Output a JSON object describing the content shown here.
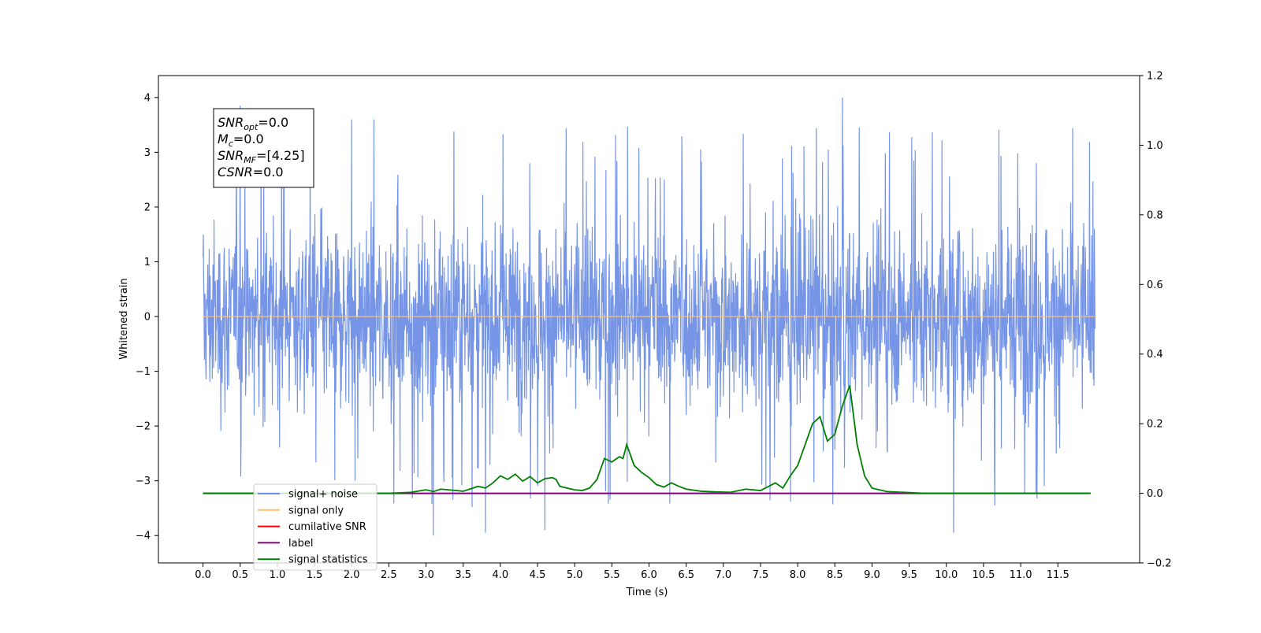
{
  "chart_data": {
    "type": "line",
    "xlabel": "Time (s)",
    "ylabel": "Whitened strain",
    "xlim": [
      -0.6,
      12.6
    ],
    "ylim": [
      -4.5,
      4.4
    ],
    "ylim_right": [
      -0.2,
      1.2
    ],
    "grid": false,
    "x_ticks": [
      "0.0",
      "0.5",
      "1.0",
      "1.5",
      "2.0",
      "2.5",
      "3.0",
      "3.5",
      "4.0",
      "4.5",
      "5.0",
      "5.5",
      "6.0",
      "6.5",
      "7.0",
      "7.5",
      "8.0",
      "8.5",
      "9.0",
      "9.5",
      "10.0",
      "10.5",
      "11.0",
      "11.5"
    ],
    "y_ticks_left": [
      "−4",
      "−3",
      "−2",
      "−1",
      "0",
      "1",
      "2",
      "3",
      "4"
    ],
    "y_ticks_right": [
      "−0.2",
      "0.0",
      "0.2",
      "0.4",
      "0.6",
      "0.8",
      "1.0",
      "1.2"
    ],
    "legend_position": "lower-left",
    "annotation": {
      "lines": [
        {
          "sym": "SNR",
          "sub": "opt",
          "value": "=0.0"
        },
        {
          "sym": "M",
          "sub": "c",
          "value": "=0.0"
        },
        {
          "sym": "SNR",
          "sub": "MF",
          "value": "=[4.25]"
        },
        {
          "sym": "CSNR",
          "sub": "",
          "value": "=0.0"
        }
      ]
    },
    "series": [
      {
        "name": "signal+ noise",
        "axis": "left",
        "color": "#6f8fe6",
        "x_range": [
          0.0,
          12.0
        ],
        "amplitude_envelope": {
          "typical_abs": 1.3,
          "peak_max": 4.0,
          "peak_min": -4.0
        },
        "notable_peaks": [
          [
            0.5,
            3.85
          ],
          [
            2.0,
            3.6
          ],
          [
            2.3,
            3.6
          ],
          [
            3.1,
            -4.0
          ],
          [
            3.8,
            -3.95
          ],
          [
            4.6,
            -3.9
          ],
          [
            8.6,
            4.0
          ],
          [
            10.1,
            -3.95
          ],
          [
            10.65,
            -3.45
          ]
        ]
      },
      {
        "name": "signal only",
        "axis": "left",
        "color": "#ffbf6b",
        "x": [
          0.0,
          12.0
        ],
        "y": [
          0.0,
          0.0
        ]
      },
      {
        "name": "cumilative SNR",
        "axis": "right",
        "color": "#ff0000",
        "x": [],
        "y": []
      },
      {
        "name": "label",
        "axis": "right",
        "color": "#800080",
        "x": [
          0.0,
          11.94
        ],
        "y": [
          0.0,
          0.0
        ]
      },
      {
        "name": "signal statistics",
        "axis": "right",
        "color": "#008000",
        "x": [
          0.0,
          2.5,
          2.8,
          3.0,
          3.1,
          3.2,
          3.4,
          3.5,
          3.7,
          3.8,
          3.9,
          4.0,
          4.1,
          4.2,
          4.3,
          4.4,
          4.5,
          4.6,
          4.7,
          4.75,
          4.8,
          4.9,
          5.0,
          5.1,
          5.2,
          5.3,
          5.4,
          5.5,
          5.6,
          5.65,
          5.7,
          5.8,
          5.9,
          6.0,
          6.1,
          6.2,
          6.3,
          6.4,
          6.5,
          6.7,
          6.9,
          7.1,
          7.3,
          7.5,
          7.7,
          7.8,
          7.9,
          8.0,
          8.1,
          8.2,
          8.3,
          8.4,
          8.5,
          8.6,
          8.7,
          8.8,
          8.9,
          9.0,
          9.2,
          9.5,
          9.7,
          11.94
        ],
        "y": [
          0.0,
          0.0,
          0.003,
          0.01,
          0.005,
          0.012,
          0.008,
          0.006,
          0.02,
          0.015,
          0.03,
          0.05,
          0.04,
          0.055,
          0.035,
          0.048,
          0.03,
          0.042,
          0.045,
          0.04,
          0.02,
          0.015,
          0.01,
          0.008,
          0.015,
          0.04,
          0.1,
          0.09,
          0.105,
          0.1,
          0.14,
          0.08,
          0.06,
          0.045,
          0.025,
          0.018,
          0.03,
          0.02,
          0.012,
          0.006,
          0.004,
          0.003,
          0.012,
          0.008,
          0.03,
          0.015,
          0.05,
          0.08,
          0.14,
          0.2,
          0.22,
          0.15,
          0.17,
          0.25,
          0.31,
          0.14,
          0.05,
          0.015,
          0.005,
          0.002,
          0.0,
          0.0
        ]
      }
    ]
  }
}
